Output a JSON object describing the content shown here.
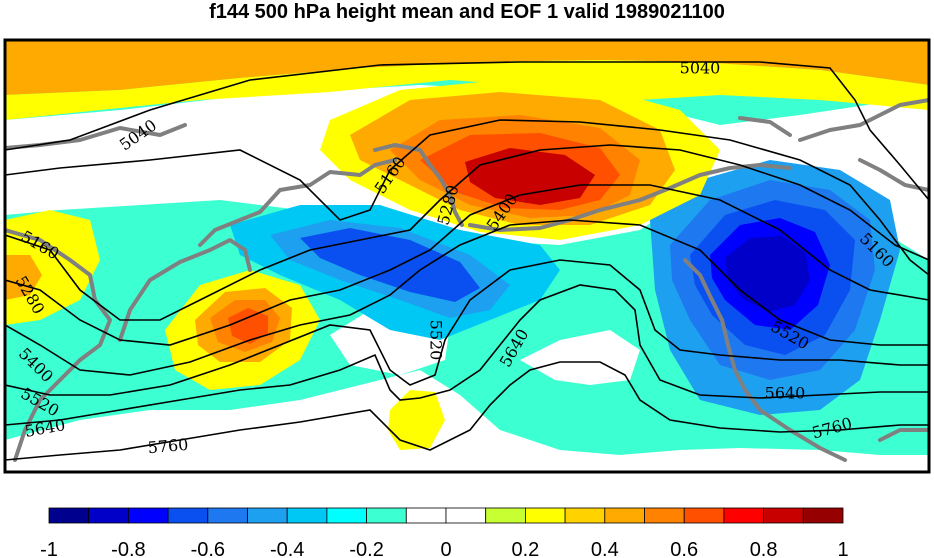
{
  "title": "f144 500 hPa height mean and EOF 1 valid 1989021100",
  "colorbar": {
    "colors": [
      "#00008f",
      "#0000c8",
      "#0000ff",
      "#0a50f0",
      "#1e78f0",
      "#1ea0f0",
      "#00c8f5",
      "#00ffff",
      "#3cffd2",
      "#ffffff",
      "#ffffff",
      "#c8ff32",
      "#ffff00",
      "#ffd200",
      "#ffaa00",
      "#ff8200",
      "#ff5000",
      "#ff0000",
      "#c80000",
      "#960000"
    ],
    "tick_labels": [
      "-1",
      "-0.8",
      "-0.6",
      "-0.4",
      "-0.2",
      "0",
      "0.2",
      "0.4",
      "0.6",
      "0.8",
      "1"
    ]
  },
  "contour_labels": [
    {
      "text": "5040",
      "rot": 0
    },
    {
      "text": "5040",
      "rot": -35
    },
    {
      "text": "5160",
      "rot": 30
    },
    {
      "text": "5160",
      "rot": -55
    },
    {
      "text": "5160",
      "rot": 45
    },
    {
      "text": "5280",
      "rot": 60
    },
    {
      "text": "5280",
      "rot": -75
    },
    {
      "text": "5400",
      "rot": -55
    },
    {
      "text": "5400",
      "rot": 45
    },
    {
      "text": "5520",
      "rot": 90
    },
    {
      "text": "5520",
      "rot": 30
    },
    {
      "text": "5520",
      "rot": -35
    },
    {
      "text": "5640",
      "rot": -60
    },
    {
      "text": "5640",
      "rot": 0
    },
    {
      "text": "5640",
      "rot": -10
    },
    {
      "text": "5760",
      "rot": -5
    },
    {
      "text": "5760",
      "rot": -15
    }
  ]
}
